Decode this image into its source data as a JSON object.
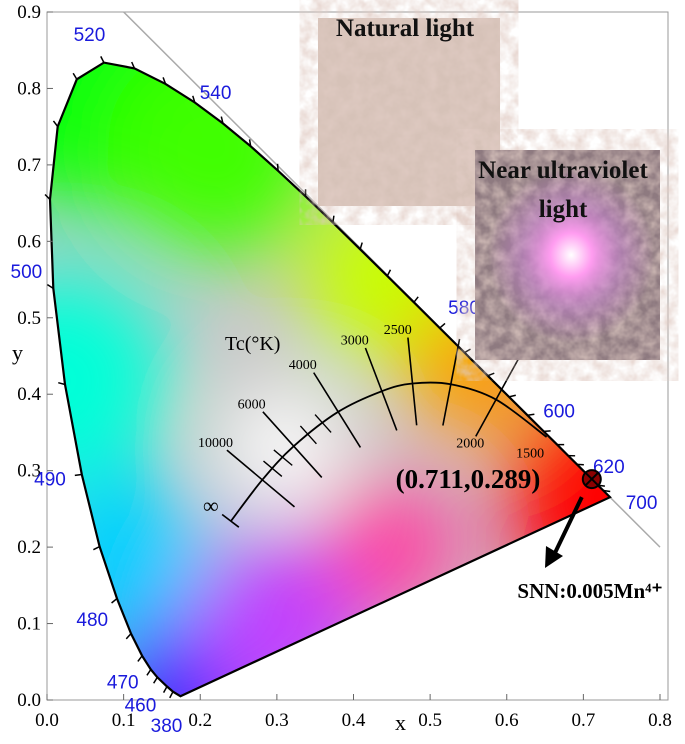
{
  "chart_data": {
    "type": "cie",
    "x_label": "x",
    "y_label": "y",
    "xlim": [
      0,
      0.8
    ],
    "ylim": [
      0,
      0.9
    ],
    "xticks": [
      {
        "value": 0,
        "label": "0.0"
      },
      0.1,
      0.2,
      0.3,
      0.4,
      0.5,
      0.6,
      0.7,
      0.8
    ],
    "yticks": [
      {
        "value": 0,
        "label": "0.0"
      },
      0.1,
      0.2,
      0.3,
      0.4,
      0.5,
      0.6,
      0.7,
      0.8,
      0.9
    ],
    "wavelength_labels": [
      {
        "label": "380",
        "x": 0.1741,
        "y": 0.005
      },
      {
        "label": "460",
        "x": 0.144,
        "y": 0.0297
      },
      {
        "label": "470",
        "x": 0.1241,
        "y": 0.0578
      },
      {
        "label": "480",
        "x": 0.0913,
        "y": 0.1327
      },
      {
        "label": "490",
        "x": 0.0454,
        "y": 0.295
      },
      {
        "label": "500",
        "x": 0.0082,
        "y": 0.5384
      },
      {
        "label": "520",
        "x": 0.0743,
        "y": 0.8338
      },
      {
        "label": "540",
        "x": 0.2296,
        "y": 0.7543
      },
      {
        "label": "580",
        "x": 0.5125,
        "y": 0.4866
      },
      {
        "label": "600",
        "x": 0.627,
        "y": 0.3725
      },
      {
        "label": "620",
        "x": 0.6915,
        "y": 0.3083
      },
      {
        "label": "700",
        "x": 0.7347,
        "y": 0.2653
      }
    ],
    "planckian_title": "Tc(°K)",
    "planckian": [
      {
        "label": "∞",
        "x": 0.24,
        "y": 0.234
      },
      {
        "label": "10000",
        "x": 0.281,
        "y": 0.288
      },
      {
        "label": "6000",
        "x": 0.322,
        "y": 0.332
      },
      {
        "label": "4000",
        "x": 0.38,
        "y": 0.377
      },
      {
        "label": "3000",
        "x": 0.437,
        "y": 0.404
      },
      {
        "label": "2500",
        "x": 0.477,
        "y": 0.414
      },
      {
        "label": "2000",
        "x": 0.527,
        "y": 0.413
      },
      {
        "label": "1500",
        "x": 0.586,
        "y": 0.393
      }
    ],
    "series": [
      {
        "name": "SNN:0.005Mn⁴⁺",
        "color": "#8b0000",
        "x": [
          0.711
        ],
        "y": [
          0.289
        ],
        "value_labels": [
          "(0.711,0.289)"
        ]
      }
    ],
    "photos": [
      {
        "caption": [
          "Natural light"
        ]
      },
      {
        "caption": [
          "Near ultraviolet",
          "light"
        ]
      }
    ]
  }
}
